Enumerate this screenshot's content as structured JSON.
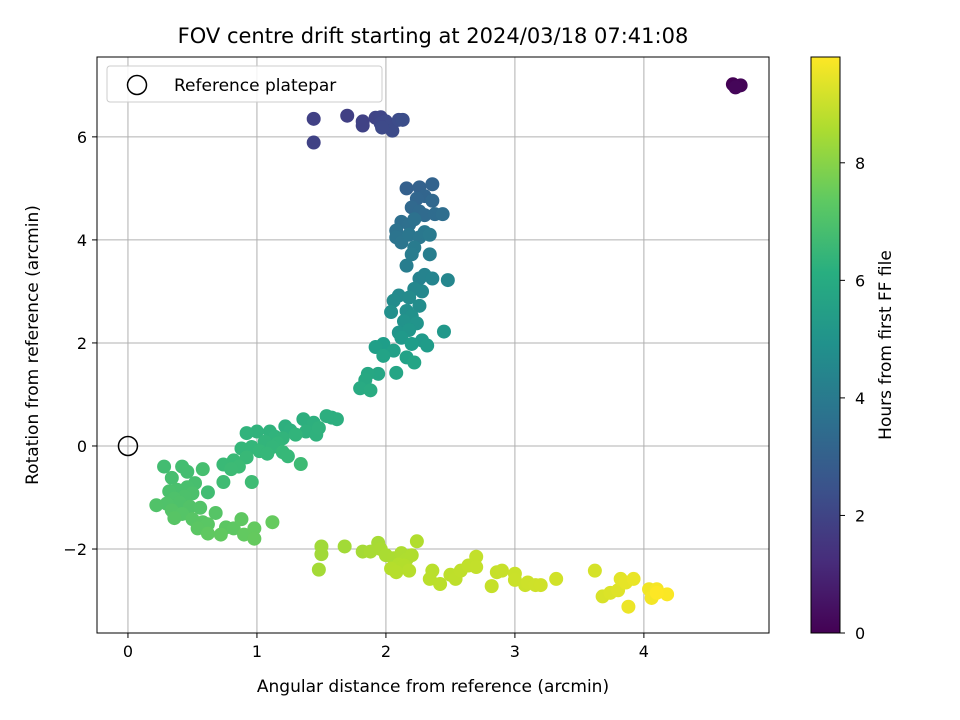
{
  "chart_data": {
    "type": "scatter",
    "title": "FOV centre drift starting at 2024/03/18 07:41:08",
    "xlabel": "Angular distance from reference (arcmin)",
    "ylabel": "Rotation from reference (arcmin)",
    "xlim": [
      -0.24,
      4.97
    ],
    "ylim": [
      -3.63,
      7.55
    ],
    "xticks": [
      0,
      1,
      2,
      3,
      4
    ],
    "xtick_labels": [
      "0",
      "1",
      "2",
      "3",
      "4"
    ],
    "yticks": [
      -2,
      0,
      2,
      4,
      6
    ],
    "ytick_labels": [
      "−2",
      "0",
      "2",
      "4",
      "6"
    ],
    "grid": true,
    "legend": {
      "location": "upper left",
      "entries": [
        "Reference platepar"
      ]
    },
    "reference_point": {
      "x": 0,
      "y": 0,
      "marker": "open-circle",
      "label": "Reference platepar"
    },
    "colorbar": {
      "label": "Hours from first FF file",
      "colormap": "viridis",
      "range": [
        0,
        9.8
      ],
      "ticks": [
        0,
        2,
        4,
        6,
        8
      ],
      "tick_labels": [
        "0",
        "2",
        "4",
        "6",
        "8"
      ]
    },
    "points": [
      {
        "x": 4.69,
        "y": 7.02,
        "t": 0.0
      },
      {
        "x": 4.72,
        "y": 6.98,
        "t": 0.05
      },
      {
        "x": 4.75,
        "y": 7.0,
        "t": 0.1
      },
      {
        "x": 4.71,
        "y": 6.96,
        "t": 0.15
      },
      {
        "x": 1.44,
        "y": 6.35,
        "t": 1.9
      },
      {
        "x": 1.44,
        "y": 5.89,
        "t": 1.95
      },
      {
        "x": 1.7,
        "y": 6.41,
        "t": 1.85
      },
      {
        "x": 1.82,
        "y": 6.3,
        "t": 1.9
      },
      {
        "x": 1.82,
        "y": 6.22,
        "t": 1.95
      },
      {
        "x": 1.92,
        "y": 6.37,
        "t": 2.0
      },
      {
        "x": 1.96,
        "y": 6.38,
        "t": 2.05
      },
      {
        "x": 1.96,
        "y": 6.26,
        "t": 2.1
      },
      {
        "x": 2.0,
        "y": 6.3,
        "t": 2.15
      },
      {
        "x": 2.02,
        "y": 6.2,
        "t": 2.2
      },
      {
        "x": 2.05,
        "y": 6.12,
        "t": 2.25
      },
      {
        "x": 2.1,
        "y": 6.33,
        "t": 2.3
      },
      {
        "x": 2.13,
        "y": 6.33,
        "t": 2.35
      },
      {
        "x": 1.97,
        "y": 6.18,
        "t": 2.2
      },
      {
        "x": 2.16,
        "y": 5.0,
        "t": 3.0
      },
      {
        "x": 2.26,
        "y": 5.02,
        "t": 3.05
      },
      {
        "x": 2.36,
        "y": 5.08,
        "t": 3.1
      },
      {
        "x": 2.3,
        "y": 4.85,
        "t": 3.15
      },
      {
        "x": 2.24,
        "y": 4.8,
        "t": 3.2
      },
      {
        "x": 2.36,
        "y": 4.76,
        "t": 3.25
      },
      {
        "x": 2.2,
        "y": 4.63,
        "t": 3.3
      },
      {
        "x": 2.26,
        "y": 4.55,
        "t": 3.35
      },
      {
        "x": 2.3,
        "y": 4.48,
        "t": 3.4
      },
      {
        "x": 2.38,
        "y": 4.5,
        "t": 3.45
      },
      {
        "x": 2.44,
        "y": 4.5,
        "t": 3.5
      },
      {
        "x": 2.12,
        "y": 4.35,
        "t": 3.55
      },
      {
        "x": 2.18,
        "y": 4.3,
        "t": 3.6
      },
      {
        "x": 2.22,
        "y": 4.4,
        "t": 3.65
      },
      {
        "x": 2.08,
        "y": 4.18,
        "t": 3.7
      },
      {
        "x": 2.08,
        "y": 4.05,
        "t": 3.75
      },
      {
        "x": 2.12,
        "y": 3.95,
        "t": 3.8
      },
      {
        "x": 2.18,
        "y": 4.1,
        "t": 3.85
      },
      {
        "x": 2.26,
        "y": 4.05,
        "t": 3.9
      },
      {
        "x": 2.3,
        "y": 4.15,
        "t": 3.95
      },
      {
        "x": 2.34,
        "y": 4.1,
        "t": 4.0
      },
      {
        "x": 2.22,
        "y": 3.85,
        "t": 4.05
      },
      {
        "x": 2.2,
        "y": 3.72,
        "t": 4.1
      },
      {
        "x": 2.16,
        "y": 3.5,
        "t": 4.15
      },
      {
        "x": 2.34,
        "y": 3.72,
        "t": 4.2
      },
      {
        "x": 2.26,
        "y": 3.25,
        "t": 4.35
      },
      {
        "x": 2.3,
        "y": 3.32,
        "t": 4.4
      },
      {
        "x": 2.36,
        "y": 3.25,
        "t": 4.45
      },
      {
        "x": 2.48,
        "y": 3.22,
        "t": 4.5
      },
      {
        "x": 2.22,
        "y": 3.05,
        "t": 4.55
      },
      {
        "x": 2.28,
        "y": 3.0,
        "t": 4.6
      },
      {
        "x": 2.1,
        "y": 2.92,
        "t": 4.65
      },
      {
        "x": 2.18,
        "y": 2.88,
        "t": 4.7
      },
      {
        "x": 2.06,
        "y": 2.82,
        "t": 4.75
      },
      {
        "x": 2.26,
        "y": 2.72,
        "t": 4.8
      },
      {
        "x": 2.16,
        "y": 2.62,
        "t": 4.85
      },
      {
        "x": 2.04,
        "y": 2.6,
        "t": 4.9
      },
      {
        "x": 2.2,
        "y": 2.52,
        "t": 4.95
      },
      {
        "x": 2.14,
        "y": 2.42,
        "t": 5.0
      },
      {
        "x": 2.24,
        "y": 2.38,
        "t": 5.05
      },
      {
        "x": 2.1,
        "y": 2.2,
        "t": 5.1
      },
      {
        "x": 2.18,
        "y": 2.25,
        "t": 5.15
      },
      {
        "x": 2.45,
        "y": 2.22,
        "t": 5.2
      },
      {
        "x": 2.12,
        "y": 2.1,
        "t": 5.25
      },
      {
        "x": 2.28,
        "y": 2.05,
        "t": 5.3
      },
      {
        "x": 2.32,
        "y": 1.95,
        "t": 5.35
      },
      {
        "x": 2.2,
        "y": 1.98,
        "t": 5.4
      },
      {
        "x": 1.98,
        "y": 1.98,
        "t": 5.45
      },
      {
        "x": 1.92,
        "y": 1.92,
        "t": 5.5
      },
      {
        "x": 2.06,
        "y": 1.85,
        "t": 5.55
      },
      {
        "x": 2.16,
        "y": 1.72,
        "t": 5.6
      },
      {
        "x": 1.98,
        "y": 1.75,
        "t": 5.65
      },
      {
        "x": 2.22,
        "y": 1.62,
        "t": 5.7
      },
      {
        "x": 2.08,
        "y": 1.42,
        "t": 5.75
      },
      {
        "x": 1.94,
        "y": 1.4,
        "t": 5.8
      },
      {
        "x": 1.86,
        "y": 1.4,
        "t": 5.85
      },
      {
        "x": 1.84,
        "y": 1.28,
        "t": 5.9
      },
      {
        "x": 1.8,
        "y": 1.12,
        "t": 5.95
      },
      {
        "x": 1.88,
        "y": 1.08,
        "t": 6.0
      },
      {
        "x": 1.58,
        "y": 0.55,
        "t": 6.1
      },
      {
        "x": 1.62,
        "y": 0.52,
        "t": 6.12
      },
      {
        "x": 1.54,
        "y": 0.58,
        "t": 6.14
      },
      {
        "x": 1.36,
        "y": 0.52,
        "t": 6.16
      },
      {
        "x": 1.44,
        "y": 0.45,
        "t": 6.18
      },
      {
        "x": 1.22,
        "y": 0.38,
        "t": 6.2
      },
      {
        "x": 1.26,
        "y": 0.3,
        "t": 6.22
      },
      {
        "x": 1.38,
        "y": 0.28,
        "t": 6.24
      },
      {
        "x": 1.46,
        "y": 0.22,
        "t": 6.26
      },
      {
        "x": 1.48,
        "y": 0.35,
        "t": 6.28
      },
      {
        "x": 1.1,
        "y": 0.28,
        "t": 6.3
      },
      {
        "x": 1.0,
        "y": 0.28,
        "t": 6.32
      },
      {
        "x": 0.92,
        "y": 0.25,
        "t": 6.34
      },
      {
        "x": 1.14,
        "y": 0.18,
        "t": 6.36
      },
      {
        "x": 1.2,
        "y": 0.15,
        "t": 6.38
      },
      {
        "x": 1.3,
        "y": 0.22,
        "t": 6.4
      },
      {
        "x": 1.06,
        "y": 0.08,
        "t": 6.42
      },
      {
        "x": 1.16,
        "y": 0.05,
        "t": 6.44
      },
      {
        "x": 1.12,
        "y": -0.02,
        "t": 6.46
      },
      {
        "x": 0.96,
        "y": -0.02,
        "t": 6.48
      },
      {
        "x": 0.88,
        "y": -0.05,
        "t": 6.5
      },
      {
        "x": 1.02,
        "y": -0.1,
        "t": 6.52
      },
      {
        "x": 1.08,
        "y": -0.15,
        "t": 6.54
      },
      {
        "x": 1.2,
        "y": -0.12,
        "t": 6.56
      },
      {
        "x": 1.24,
        "y": -0.2,
        "t": 6.58
      },
      {
        "x": 0.92,
        "y": -0.22,
        "t": 6.6
      },
      {
        "x": 0.82,
        "y": -0.28,
        "t": 6.62
      },
      {
        "x": 0.74,
        "y": -0.36,
        "t": 6.64
      },
      {
        "x": 0.86,
        "y": -0.4,
        "t": 6.66
      },
      {
        "x": 0.8,
        "y": -0.45,
        "t": 6.68
      },
      {
        "x": 1.34,
        "y": -0.35,
        "t": 6.7
      },
      {
        "x": 0.96,
        "y": -0.7,
        "t": 6.72
      },
      {
        "x": 0.74,
        "y": -0.7,
        "t": 6.74
      },
      {
        "x": 0.62,
        "y": -0.9,
        "t": 6.76
      },
      {
        "x": 0.28,
        "y": -0.4,
        "t": 6.8
      },
      {
        "x": 0.42,
        "y": -0.4,
        "t": 6.82
      },
      {
        "x": 0.46,
        "y": -0.5,
        "t": 6.84
      },
      {
        "x": 0.58,
        "y": -0.45,
        "t": 6.86
      },
      {
        "x": 0.34,
        "y": -0.62,
        "t": 6.88
      },
      {
        "x": 0.52,
        "y": -0.72,
        "t": 6.9
      },
      {
        "x": 0.46,
        "y": -0.8,
        "t": 6.92
      },
      {
        "x": 0.38,
        "y": -0.85,
        "t": 6.94
      },
      {
        "x": 0.32,
        "y": -0.88,
        "t": 6.96
      },
      {
        "x": 0.5,
        "y": -0.92,
        "t": 6.98
      },
      {
        "x": 0.44,
        "y": -0.98,
        "t": 7.0
      },
      {
        "x": 0.36,
        "y": -1.02,
        "t": 7.02
      },
      {
        "x": 0.4,
        "y": -1.1,
        "t": 7.04
      },
      {
        "x": 0.3,
        "y": -1.12,
        "t": 7.06
      },
      {
        "x": 0.22,
        "y": -1.15,
        "t": 7.08
      },
      {
        "x": 0.48,
        "y": -1.18,
        "t": 7.1
      },
      {
        "x": 0.56,
        "y": -1.2,
        "t": 7.12
      },
      {
        "x": 0.34,
        "y": -1.25,
        "t": 7.14
      },
      {
        "x": 0.42,
        "y": -1.32,
        "t": 7.16
      },
      {
        "x": 0.68,
        "y": -1.3,
        "t": 7.18
      },
      {
        "x": 0.36,
        "y": -1.4,
        "t": 7.2
      },
      {
        "x": 0.5,
        "y": -1.42,
        "t": 7.22
      },
      {
        "x": 0.58,
        "y": -1.48,
        "t": 7.24
      },
      {
        "x": 0.62,
        "y": -1.52,
        "t": 7.26
      },
      {
        "x": 0.54,
        "y": -1.6,
        "t": 7.28
      },
      {
        "x": 0.76,
        "y": -1.58,
        "t": 7.3
      },
      {
        "x": 0.82,
        "y": -1.6,
        "t": 7.32
      },
      {
        "x": 0.88,
        "y": -1.42,
        "t": 7.34
      },
      {
        "x": 0.62,
        "y": -1.7,
        "t": 7.36
      },
      {
        "x": 0.72,
        "y": -1.72,
        "t": 7.38
      },
      {
        "x": 0.9,
        "y": -1.72,
        "t": 7.4
      },
      {
        "x": 0.98,
        "y": -1.6,
        "t": 7.42
      },
      {
        "x": 0.98,
        "y": -1.8,
        "t": 7.44
      },
      {
        "x": 1.12,
        "y": -1.48,
        "t": 7.46
      },
      {
        "x": 1.5,
        "y": -1.95,
        "t": 8.4
      },
      {
        "x": 1.5,
        "y": -2.1,
        "t": 8.42
      },
      {
        "x": 1.68,
        "y": -1.95,
        "t": 8.44
      },
      {
        "x": 1.48,
        "y": -2.4,
        "t": 8.46
      },
      {
        "x": 1.82,
        "y": -2.05,
        "t": 8.48
      },
      {
        "x": 1.94,
        "y": -1.88,
        "t": 8.5
      },
      {
        "x": 1.88,
        "y": -2.05,
        "t": 8.52
      },
      {
        "x": 1.96,
        "y": -2.0,
        "t": 8.54
      },
      {
        "x": 2.0,
        "y": -2.12,
        "t": 8.56
      },
      {
        "x": 2.06,
        "y": -2.18,
        "t": 8.58
      },
      {
        "x": 2.12,
        "y": -2.08,
        "t": 8.6
      },
      {
        "x": 2.16,
        "y": -2.2,
        "t": 8.62
      },
      {
        "x": 2.2,
        "y": -2.12,
        "t": 8.64
      },
      {
        "x": 2.24,
        "y": -1.85,
        "t": 8.66
      },
      {
        "x": 2.1,
        "y": -2.3,
        "t": 8.68
      },
      {
        "x": 2.14,
        "y": -2.32,
        "t": 8.7
      },
      {
        "x": 2.04,
        "y": -2.38,
        "t": 8.72
      },
      {
        "x": 2.08,
        "y": -2.45,
        "t": 8.74
      },
      {
        "x": 2.18,
        "y": -2.42,
        "t": 8.76
      },
      {
        "x": 2.36,
        "y": -2.42,
        "t": 8.78
      },
      {
        "x": 2.34,
        "y": -2.58,
        "t": 8.8
      },
      {
        "x": 2.42,
        "y": -2.68,
        "t": 8.82
      },
      {
        "x": 2.5,
        "y": -2.5,
        "t": 8.84
      },
      {
        "x": 2.54,
        "y": -2.58,
        "t": 8.86
      },
      {
        "x": 2.58,
        "y": -2.42,
        "t": 8.88
      },
      {
        "x": 2.64,
        "y": -2.32,
        "t": 8.9
      },
      {
        "x": 2.7,
        "y": -2.15,
        "t": 8.92
      },
      {
        "x": 2.7,
        "y": -2.35,
        "t": 8.94
      },
      {
        "x": 2.82,
        "y": -2.72,
        "t": 8.96
      },
      {
        "x": 2.86,
        "y": -2.45,
        "t": 8.98
      },
      {
        "x": 2.9,
        "y": -2.42,
        "t": 9.0
      },
      {
        "x": 3.0,
        "y": -2.48,
        "t": 9.02
      },
      {
        "x": 3.0,
        "y": -2.6,
        "t": 9.04
      },
      {
        "x": 3.08,
        "y": -2.7,
        "t": 9.06
      },
      {
        "x": 3.1,
        "y": -2.65,
        "t": 9.08
      },
      {
        "x": 3.16,
        "y": -2.7,
        "t": 9.1
      },
      {
        "x": 3.2,
        "y": -2.7,
        "t": 9.12
      },
      {
        "x": 3.32,
        "y": -2.58,
        "t": 9.14
      },
      {
        "x": 3.62,
        "y": -2.42,
        "t": 9.2
      },
      {
        "x": 3.68,
        "y": -2.92,
        "t": 9.25
      },
      {
        "x": 3.74,
        "y": -2.85,
        "t": 9.3
      },
      {
        "x": 3.8,
        "y": -2.8,
        "t": 9.35
      },
      {
        "x": 3.82,
        "y": -2.58,
        "t": 9.4
      },
      {
        "x": 3.86,
        "y": -2.65,
        "t": 9.45
      },
      {
        "x": 3.92,
        "y": -2.58,
        "t": 9.5
      },
      {
        "x": 3.88,
        "y": -3.12,
        "t": 9.55
      },
      {
        "x": 4.04,
        "y": -2.78,
        "t": 9.6
      },
      {
        "x": 4.06,
        "y": -2.95,
        "t": 9.65
      },
      {
        "x": 4.1,
        "y": -2.78,
        "t": 9.7
      },
      {
        "x": 4.18,
        "y": -2.88,
        "t": 9.75
      },
      {
        "x": 4.1,
        "y": -2.85,
        "t": 9.8
      }
    ]
  }
}
